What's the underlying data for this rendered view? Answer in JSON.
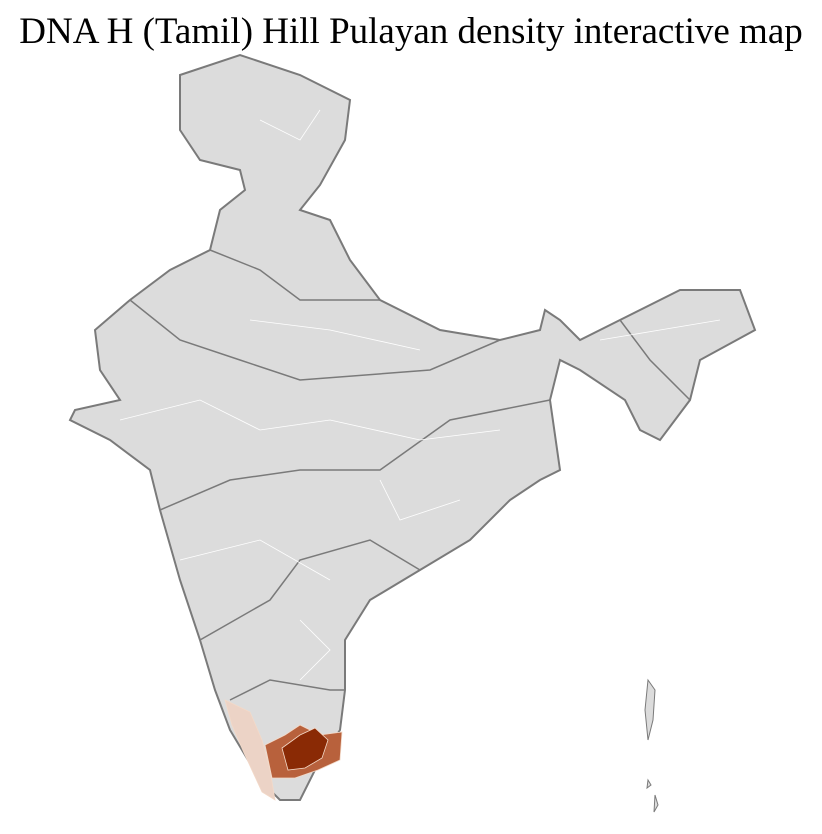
{
  "title": "DNA H (Tamil) Hill Pulayan density interactive map",
  "map": {
    "base_fill": "#dcdcdc",
    "border_color": "#7a7a7a",
    "district_line_color": "#ffffff",
    "density_colors": {
      "low": "#ecd3c6",
      "medium": "#b8613c",
      "high": "#8a2a05"
    },
    "highlighted_regions": [
      {
        "name": "Kerala",
        "level": "low"
      },
      {
        "name": "Tamil Nadu (west-central)",
        "level": "medium"
      },
      {
        "name": "Tamil Nadu (central)",
        "level": "high"
      }
    ]
  }
}
